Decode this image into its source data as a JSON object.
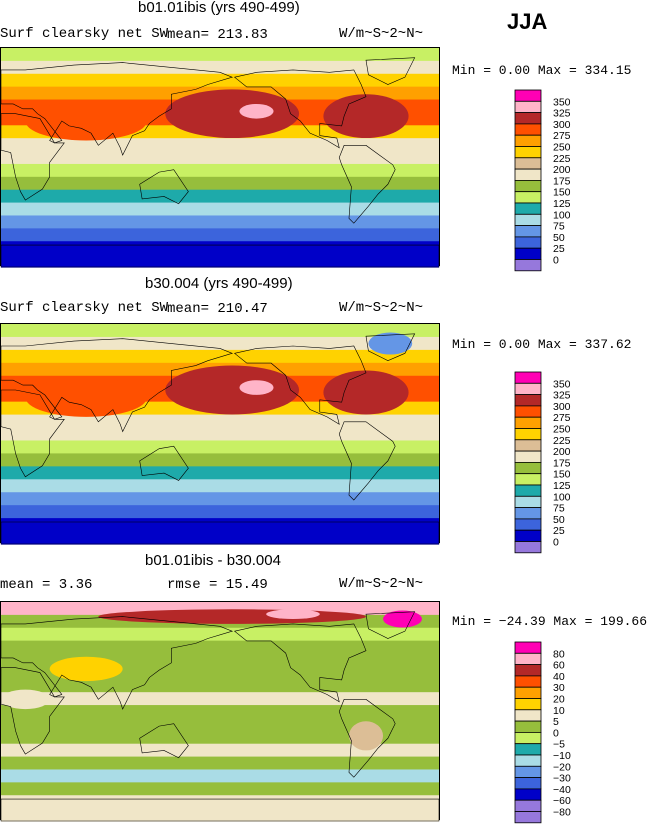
{
  "season": "JJA",
  "panels": [
    {
      "title": "b01.01ibis (yrs 490-499)",
      "left_label": "Surf clearsky net SW",
      "stat_label": "mean= 213.83",
      "units": "W/m~S~2~N~",
      "min_label": "Min =   0.00 Max = 334.15"
    },
    {
      "title": "b30.004 (yrs 490-499)",
      "left_label": "Surf clearsky net SW",
      "stat_label": "mean= 210.47",
      "units": "W/m~S~2~N~",
      "min_label": "Min =   0.00 Max = 337.62"
    },
    {
      "title": "b01.01ibis - b30.004",
      "left_label": "mean =   3.36",
      "stat_label": "rmse =  15.49",
      "units": "W/m~S~2~N~",
      "min_label": "Min = −24.39 Max = 199.66"
    }
  ],
  "chart_data": [
    {
      "type": "heatmap",
      "title": "b01.01ibis (yrs 490-499)",
      "variable": "Surf clearsky net SW",
      "units": "W/m~S~2~N~",
      "mean": 213.83,
      "min": 0.0,
      "max": 334.15,
      "colorbar": {
        "levels": [
          "350",
          "325",
          "300",
          "275",
          "250",
          "225",
          "200",
          "175",
          "150",
          "125",
          "100",
          "75",
          "50",
          "25",
          "0"
        ],
        "colors": [
          "#ff00b4",
          "#ffb4c8",
          "#b42828",
          "#ff5000",
          "#ffa000",
          "#ffd200",
          "#dcbe96",
          "#f0e6c8",
          "#96be3c",
          "#c8f064",
          "#1eaaaa",
          "#aadce6",
          "#6496e6",
          "#3c64dc",
          "#0000c8",
          "#9678dc"
        ]
      }
    },
    {
      "type": "heatmap",
      "title": "b30.004 (yrs 490-499)",
      "variable": "Surf clearsky net SW",
      "units": "W/m~S~2~N~",
      "mean": 210.47,
      "min": 0.0,
      "max": 337.62,
      "colorbar": {
        "levels": [
          "350",
          "325",
          "300",
          "275",
          "250",
          "225",
          "200",
          "175",
          "150",
          "125",
          "100",
          "75",
          "50",
          "25",
          "0"
        ],
        "colors": [
          "#ff00b4",
          "#ffb4c8",
          "#b42828",
          "#ff5000",
          "#ffa000",
          "#ffd200",
          "#dcbe96",
          "#f0e6c8",
          "#96be3c",
          "#c8f064",
          "#1eaaaa",
          "#aadce6",
          "#6496e6",
          "#3c64dc",
          "#0000c8",
          "#9678dc"
        ]
      }
    },
    {
      "type": "heatmap",
      "title": "b01.01ibis - b30.004",
      "units": "W/m~S~2~N~",
      "mean": 3.36,
      "rmse": 15.49,
      "min": -24.39,
      "max": 199.66,
      "colorbar": {
        "levels": [
          "80",
          "60",
          "40",
          "30",
          "20",
          "10",
          "5",
          "0",
          "−5",
          "−10",
          "−20",
          "−30",
          "−40",
          "−60",
          "−80"
        ],
        "colors": [
          "#ff00b4",
          "#ffb4c8",
          "#b42828",
          "#ff5000",
          "#ffa000",
          "#ffd200",
          "#f0e6c8",
          "#96be3c",
          "#c8f064",
          "#1eaaaa",
          "#aadce6",
          "#6496e6",
          "#3c64dc",
          "#0000c8",
          "#9678dc",
          "#9678dc"
        ]
      }
    }
  ]
}
